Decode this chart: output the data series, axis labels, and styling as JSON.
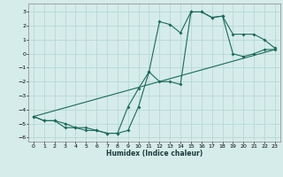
{
  "xlabel": "Humidex (Indice chaleur)",
  "ylabel": "",
  "bg_color": "#d5ecea",
  "grid_color": "#b8d8d5",
  "line_color": "#1a6b5a",
  "xlim": [
    -0.5,
    23.5
  ],
  "ylim": [
    -6.3,
    3.6
  ],
  "xticks": [
    0,
    1,
    2,
    3,
    4,
    5,
    6,
    7,
    8,
    9,
    10,
    11,
    12,
    13,
    14,
    15,
    16,
    17,
    18,
    19,
    20,
    21,
    22,
    23
  ],
  "yticks": [
    -6,
    -5,
    -4,
    -3,
    -2,
    -1,
    0,
    1,
    2,
    3
  ],
  "line1_x": [
    0,
    1,
    2,
    3,
    4,
    5,
    6,
    7,
    8,
    9,
    10,
    11,
    12,
    13,
    14,
    15,
    16,
    17,
    18,
    19,
    20,
    21,
    22,
    23
  ],
  "line1_y": [
    -4.5,
    -4.8,
    -4.8,
    -5.3,
    -5.3,
    -5.5,
    -5.5,
    -5.7,
    -5.7,
    -5.5,
    -3.8,
    -1.3,
    -2.0,
    -2.0,
    -2.2,
    3.0,
    3.0,
    2.6,
    2.7,
    1.4,
    1.4,
    1.4,
    1.0,
    0.4
  ],
  "line2_x": [
    0,
    1,
    2,
    3,
    4,
    5,
    6,
    7,
    8,
    9,
    10,
    11,
    12,
    13,
    14,
    15,
    16,
    17,
    18,
    19,
    20,
    21,
    22,
    23
  ],
  "line2_y": [
    -4.5,
    -4.8,
    -4.8,
    -5.0,
    -5.3,
    -5.3,
    -5.5,
    -5.7,
    -5.7,
    -3.8,
    -2.5,
    -1.3,
    2.3,
    2.1,
    1.5,
    3.0,
    3.0,
    2.6,
    2.7,
    0.0,
    -0.2,
    0.0,
    0.3,
    0.3
  ],
  "line3_x": [
    0,
    23
  ],
  "line3_y": [
    -4.5,
    0.3
  ]
}
